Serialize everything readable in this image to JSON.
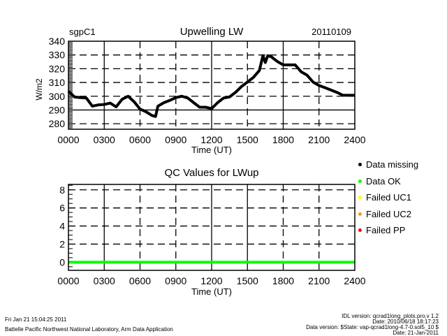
{
  "chart_data": [
    {
      "type": "line",
      "site": "sgpC1",
      "title": "Upwelling LW",
      "date": "20110109",
      "xlabel": "Time (UT)",
      "ylabel": "W/m2",
      "xlim": [
        0,
        24
      ],
      "ylim": [
        276,
        340
      ],
      "xticks": [
        "0000",
        "0300",
        "0600",
        "0900",
        "1200",
        "1500",
        "1800",
        "2100",
        "2400"
      ],
      "yticks": [
        "280",
        "290",
        "300",
        "310",
        "320",
        "330",
        "340"
      ],
      "grid": true,
      "series": [
        {
          "name": "Upwelling LW",
          "color": "#000000",
          "x": [
            0,
            0.5,
            1,
            1.5,
            2,
            2.5,
            3,
            3.5,
            4,
            4.5,
            5,
            5.5,
            6,
            6.5,
            7,
            7.3,
            7.5,
            8,
            8.5,
            9,
            9.5,
            10,
            10.5,
            11,
            11.5,
            12,
            12.5,
            13,
            13.5,
            14,
            14.5,
            15,
            15.5,
            16,
            16.3,
            16.5,
            16.7,
            17,
            17.5,
            18,
            18.5,
            19,
            19.5,
            20,
            20.5,
            21,
            21.5,
            22,
            22.5,
            23,
            24
          ],
          "y": [
            303.7,
            299.5,
            299,
            298.7,
            292.8,
            293.7,
            294,
            295,
            292.3,
            297.8,
            300,
            296,
            290.7,
            288.7,
            286,
            285.3,
            292.8,
            295.3,
            297,
            299,
            300,
            298.7,
            295.3,
            292,
            292,
            291,
            295.3,
            298.7,
            299.5,
            302.8,
            307,
            310.3,
            313.7,
            318.7,
            329.5,
            324.5,
            329.5,
            328.7,
            325.3,
            322.8,
            322.8,
            322.8,
            317.8,
            315.3,
            310.3,
            307.8,
            306.2,
            304.5,
            302.8,
            300.7,
            300.7
          ]
        }
      ]
    },
    {
      "type": "line",
      "title": "QC Values for LWup",
      "xlabel": "Time (UT)",
      "ylabel": "",
      "xlim": [
        0,
        24
      ],
      "ylim": [
        -0.9,
        8.6
      ],
      "xticks": [
        "0000",
        "0300",
        "0600",
        "0900",
        "1200",
        "1500",
        "1800",
        "2100",
        "2400"
      ],
      "yticks": [
        "0",
        "2",
        "4",
        "6",
        "8"
      ],
      "grid": true,
      "series": [
        {
          "name": "QC",
          "color": "#00ff00",
          "x": [
            0,
            24
          ],
          "y": [
            0,
            0
          ]
        }
      ],
      "legend": [
        {
          "label": "Data missing",
          "color": "#000000"
        },
        {
          "label": "Data OK",
          "color": "#00ff00"
        },
        {
          "label": "Failed UC1",
          "color": "#ffff00"
        },
        {
          "label": "Failed UC2",
          "color": "#ff9900"
        },
        {
          "label": "Failed PP",
          "color": "#ff0000"
        }
      ]
    }
  ],
  "footer": {
    "left_line1": "Fri Jan 21 15:04:25 2011",
    "left_line2": "Battelle Pacific Northwest National Laboratory, Arm Data Application",
    "right_line1": "IDL version: qcrad1long_plots.pro,v 1.2",
    "right_line2": "Date: 2010/06/18 18:17:23",
    "right_line3": "Data version: $State: vap-qcrad1long-4.7-0.sol5_10 $",
    "right_line4": "Date: 21-Jan-2011"
  }
}
